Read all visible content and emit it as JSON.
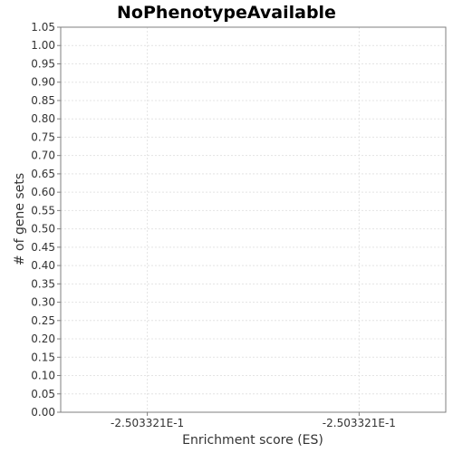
{
  "chart_data": {
    "type": "bar",
    "title": "NoPhenotypeAvailable",
    "xlabel": "Enrichment score (ES)",
    "ylabel": "# of gene sets",
    "ylim": [
      0,
      1.05
    ],
    "y_ticks": [
      "0.00",
      "0.05",
      "0.10",
      "0.15",
      "0.20",
      "0.25",
      "0.30",
      "0.35",
      "0.40",
      "0.45",
      "0.50",
      "0.55",
      "0.60",
      "0.65",
      "0.70",
      "0.75",
      "0.80",
      "0.85",
      "0.90",
      "0.95",
      "1.00",
      "1.05"
    ],
    "x_ticks": [
      "-2.503321E-1",
      "-2.503321E-1"
    ],
    "categories": [],
    "values": [],
    "grid": true,
    "colors": {
      "plot_bg": "#ffffff",
      "plot_border": "#7f7f7f",
      "grid": "#e4e4e4",
      "text": "#333333"
    }
  }
}
